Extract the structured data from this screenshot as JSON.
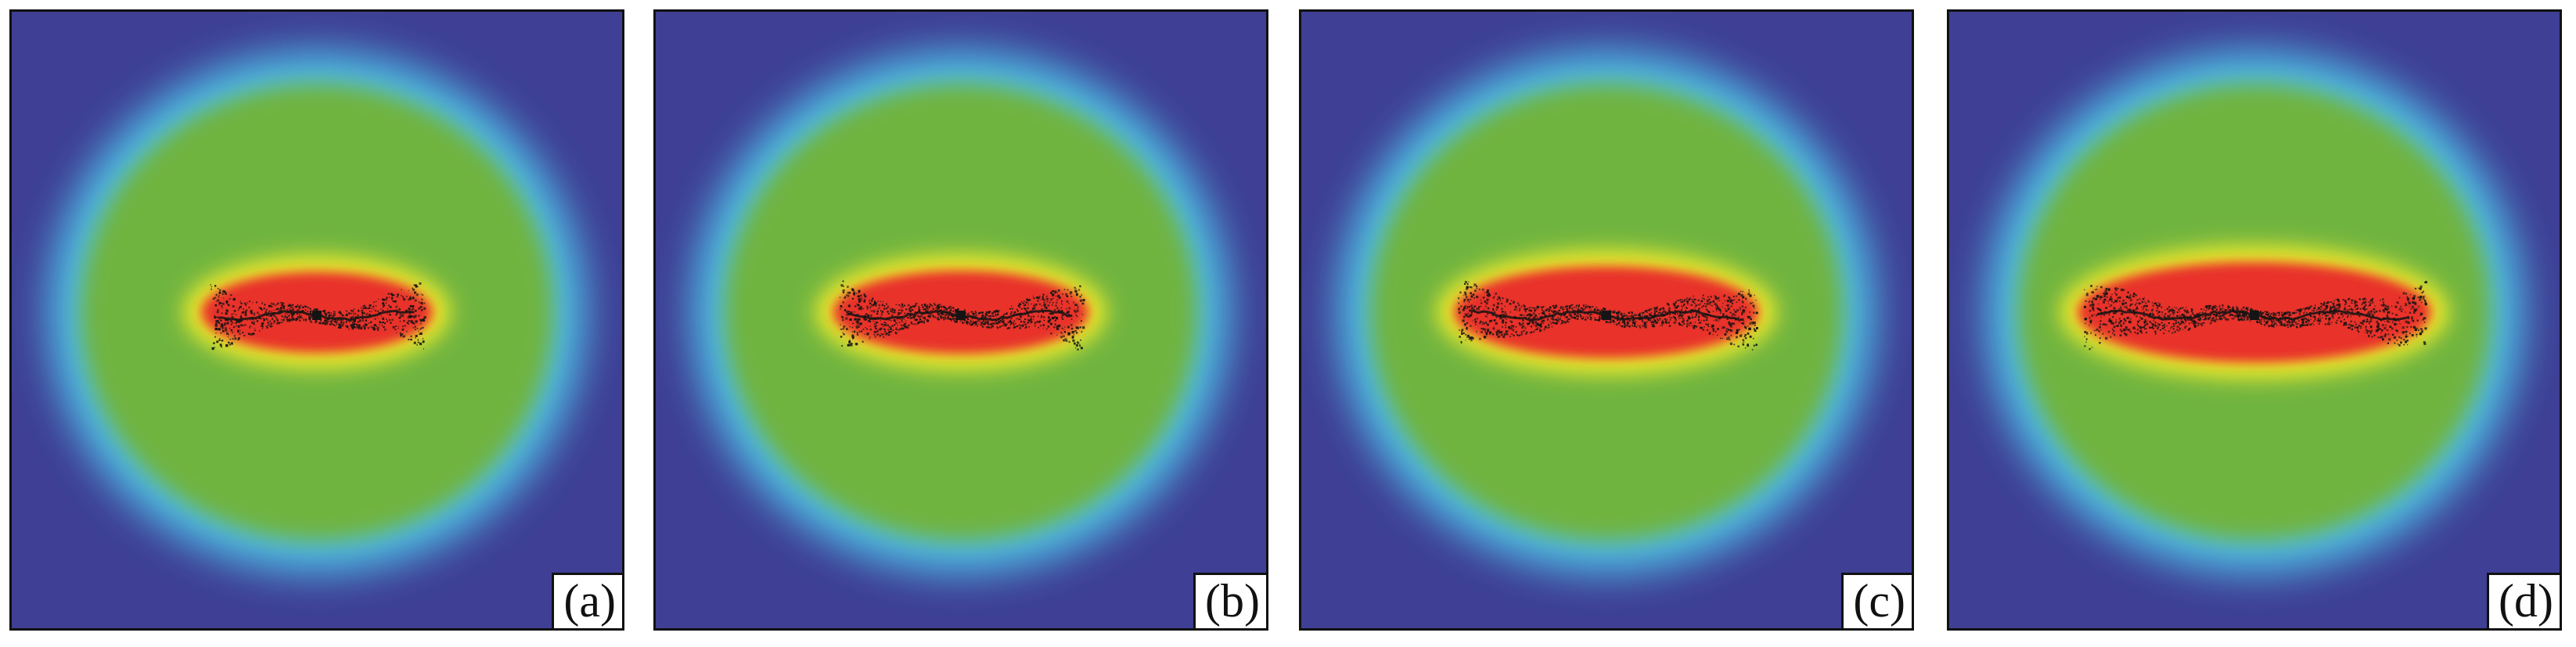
{
  "panels": [
    {
      "label": "(a)",
      "core_rx": 0.19,
      "core_ry": 0.066,
      "dot_spread": 0.175,
      "seed": 11
    },
    {
      "label": "(b)",
      "core_rx": 0.21,
      "core_ry": 0.068,
      "dot_spread": 0.2,
      "seed": 23
    },
    {
      "label": "(c)",
      "core_rx": 0.25,
      "core_ry": 0.075,
      "dot_spread": 0.245,
      "seed": 37
    },
    {
      "label": "(d)",
      "core_rx": 0.29,
      "core_ry": 0.082,
      "dot_spread": 0.28,
      "seed": 53
    }
  ],
  "colors": {
    "background": "#3e3f95",
    "halo": "#4fc8ec",
    "field": "#6fb43f",
    "rim": "#f3ec2a",
    "core": "#e8302a",
    "particles": "#141414"
  }
}
